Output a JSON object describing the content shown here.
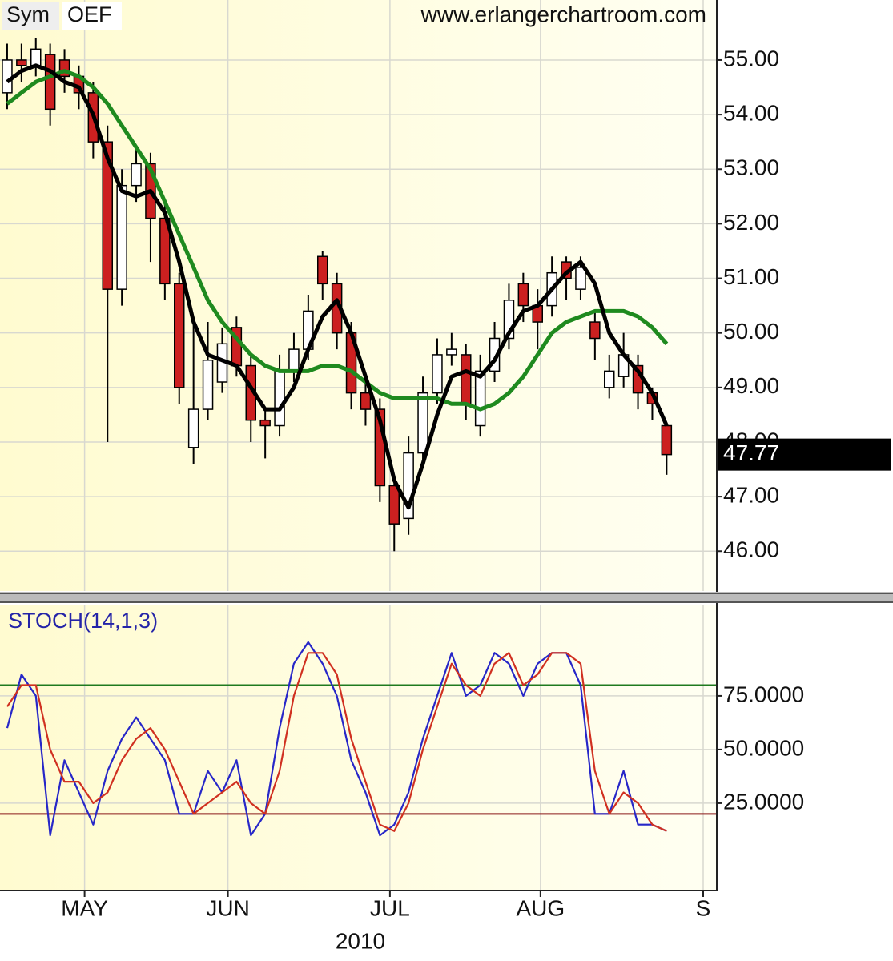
{
  "chart_data": [
    {
      "type": "candlestick",
      "symbol_label": "Sym",
      "symbol": "OEF",
      "source": "www.erlangerchartroom.com",
      "categories": [
        null,
        null,
        null,
        null,
        null,
        null,
        null,
        null,
        null,
        null,
        null,
        null,
        null,
        null,
        null,
        null,
        null,
        null,
        null,
        null,
        null,
        null,
        null,
        null,
        null,
        null,
        null,
        null,
        null,
        null,
        null,
        null,
        null,
        null,
        null,
        null,
        null,
        null,
        null,
        null,
        null,
        null,
        null,
        null,
        null,
        null,
        null
      ],
      "open": [
        54.4,
        55.0,
        54.9,
        55.1,
        55.0,
        54.7,
        54.4,
        53.5,
        50.8,
        52.7,
        53.1,
        52.1,
        50.9,
        47.9,
        48.6,
        49.1,
        50.1,
        49.4,
        48.4,
        48.3,
        49.3,
        49.7,
        51.4,
        50.9,
        50.0,
        48.9,
        48.6,
        47.2,
        46.6,
        47.8,
        48.9,
        49.6,
        49.6,
        48.3,
        49.3,
        49.9,
        50.9,
        50.5,
        50.5,
        51.3,
        50.8,
        50.2,
        49.0,
        49.2,
        49.4,
        48.9,
        48.3
      ],
      "high": [
        55.3,
        55.3,
        55.4,
        55.3,
        55.2,
        54.9,
        54.6,
        53.8,
        53.0,
        53.4,
        53.3,
        52.4,
        51.1,
        50.2,
        50.2,
        50.1,
        50.3,
        49.6,
        48.6,
        49.6,
        50.0,
        50.7,
        51.5,
        51.1,
        50.2,
        49.1,
        48.8,
        47.4,
        48.1,
        49.2,
        49.9,
        50.0,
        49.8,
        49.6,
        50.2,
        50.9,
        51.1,
        50.8,
        51.4,
        51.4,
        51.4,
        50.4,
        49.6,
        50.0,
        49.6,
        49.0,
        48.3
      ],
      "low": [
        54.1,
        54.6,
        54.7,
        53.8,
        54.4,
        54.1,
        53.2,
        48.0,
        50.5,
        52.4,
        51.3,
        50.6,
        48.7,
        47.6,
        48.4,
        48.9,
        49.2,
        48.0,
        47.7,
        48.1,
        49.1,
        49.5,
        50.6,
        49.7,
        48.6,
        48.3,
        46.9,
        46.0,
        46.3,
        47.6,
        48.7,
        49.4,
        48.4,
        48.1,
        49.1,
        49.7,
        50.2,
        49.7,
        50.3,
        50.6,
        50.6,
        49.5,
        48.8,
        49.0,
        48.6,
        48.4,
        47.4
      ],
      "close": [
        55.0,
        54.9,
        55.2,
        54.1,
        54.7,
        54.4,
        53.5,
        50.8,
        52.7,
        53.1,
        52.1,
        50.9,
        49.0,
        48.6,
        49.5,
        49.8,
        49.4,
        48.4,
        48.3,
        49.3,
        49.7,
        50.4,
        50.9,
        50.0,
        48.9,
        48.6,
        47.2,
        46.5,
        47.8,
        48.9,
        49.6,
        49.7,
        48.7,
        49.3,
        49.9,
        50.6,
        50.5,
        50.2,
        51.1,
        51.0,
        51.2,
        49.9,
        49.3,
        49.6,
        48.9,
        48.7,
        47.77
      ],
      "up_color": "#ffffff",
      "down_color": "#cc2020",
      "overlays": [
        {
          "color": "#000000",
          "values": [
            54.6,
            54.8,
            54.9,
            54.8,
            54.6,
            54.5,
            54.0,
            53.2,
            52.6,
            52.5,
            52.6,
            52.2,
            51.3,
            50.2,
            49.6,
            49.5,
            49.4,
            49.0,
            48.6,
            48.6,
            49.0,
            49.7,
            50.3,
            50.6,
            50.0,
            49.2,
            48.4,
            47.3,
            46.8,
            47.6,
            48.5,
            49.2,
            49.3,
            49.2,
            49.5,
            50.0,
            50.4,
            50.5,
            50.8,
            51.1,
            51.3,
            50.9,
            50.0,
            49.6,
            49.3,
            48.9,
            48.3
          ]
        },
        {
          "color": "#1f8a1f",
          "values": [
            54.2,
            54.4,
            54.6,
            54.7,
            54.8,
            54.7,
            54.5,
            54.2,
            53.8,
            53.4,
            53.0,
            52.4,
            51.8,
            51.2,
            50.6,
            50.2,
            49.9,
            49.6,
            49.4,
            49.3,
            49.3,
            49.3,
            49.4,
            49.4,
            49.3,
            49.1,
            48.9,
            48.8,
            48.8,
            48.8,
            48.8,
            48.7,
            48.7,
            48.6,
            48.7,
            48.9,
            49.2,
            49.6,
            50.0,
            50.2,
            50.3,
            50.4,
            50.4,
            50.4,
            50.3,
            50.1,
            49.8
          ]
        }
      ],
      "ylim": [
        45.27,
        56.1
      ],
      "yticks": [
        {
          "value": 46,
          "label": "46.00"
        },
        {
          "value": 47,
          "label": "47.00"
        },
        {
          "value": 48,
          "label": "48.00"
        },
        {
          "value": 49,
          "label": "49.00"
        },
        {
          "value": 50,
          "label": "50.00"
        },
        {
          "value": 51,
          "label": "51.00"
        },
        {
          "value": 52,
          "label": "52.00"
        },
        {
          "value": 53,
          "label": "53.00"
        },
        {
          "value": 54,
          "label": "54.00"
        },
        {
          "value": 55,
          "label": "55.00"
        }
      ],
      "grid": true
    },
    {
      "type": "line",
      "title": "STOCH(14,1,3)",
      "xlabel": "2010",
      "categories": [
        null,
        null,
        null,
        null,
        null,
        null,
        null,
        null,
        null,
        null,
        null,
        null,
        null,
        null,
        null,
        null,
        null,
        null,
        null,
        null,
        null,
        null,
        null,
        null,
        null,
        null,
        null,
        null,
        null,
        null,
        null,
        null,
        null,
        null,
        null,
        null,
        null,
        null,
        null,
        null,
        null,
        null,
        null,
        null,
        null,
        null,
        null
      ],
      "series": [
        {
          "color": "#2727c8",
          "values": [
            60,
            85,
            75,
            10,
            45,
            30,
            15,
            40,
            55,
            65,
            55,
            45,
            20,
            20,
            40,
            30,
            45,
            10,
            20,
            60,
            90,
            100,
            90,
            75,
            45,
            30,
            10,
            15,
            30,
            55,
            75,
            95,
            75,
            80,
            95,
            90,
            75,
            90,
            95,
            95,
            80,
            20,
            20,
            40,
            15,
            15,
            12
          ]
        },
        {
          "color": "#d03020",
          "values": [
            70,
            80,
            80,
            50,
            35,
            35,
            25,
            30,
            45,
            55,
            60,
            50,
            35,
            20,
            25,
            30,
            35,
            25,
            20,
            40,
            75,
            95,
            95,
            85,
            55,
            35,
            15,
            12,
            25,
            50,
            70,
            90,
            80,
            75,
            90,
            95,
            80,
            85,
            95,
            95,
            90,
            40,
            20,
            30,
            25,
            15,
            12
          ]
        }
      ],
      "hlines": [
        {
          "value": 80,
          "color": "#1f7a1f"
        },
        {
          "value": 20,
          "color": "#8b1a1a"
        }
      ],
      "xlim": [
        0,
        50
      ],
      "xticks": [
        {
          "value": 5.9,
          "label": "MAY"
        },
        {
          "value": 15.9,
          "label": "JUN"
        },
        {
          "value": 27.2,
          "label": "JUL"
        },
        {
          "value": 37.7,
          "label": "AUG"
        },
        {
          "value": 49.05,
          "label": "S"
        }
      ],
      "ylim": [
        -15.7,
        117.5
      ],
      "yticks": [
        {
          "value": 25,
          "label": "25.0000"
        },
        {
          "value": 50,
          "label": "50.0000"
        },
        {
          "value": 75,
          "label": "75.0000"
        }
      ],
      "grid": true
    }
  ]
}
